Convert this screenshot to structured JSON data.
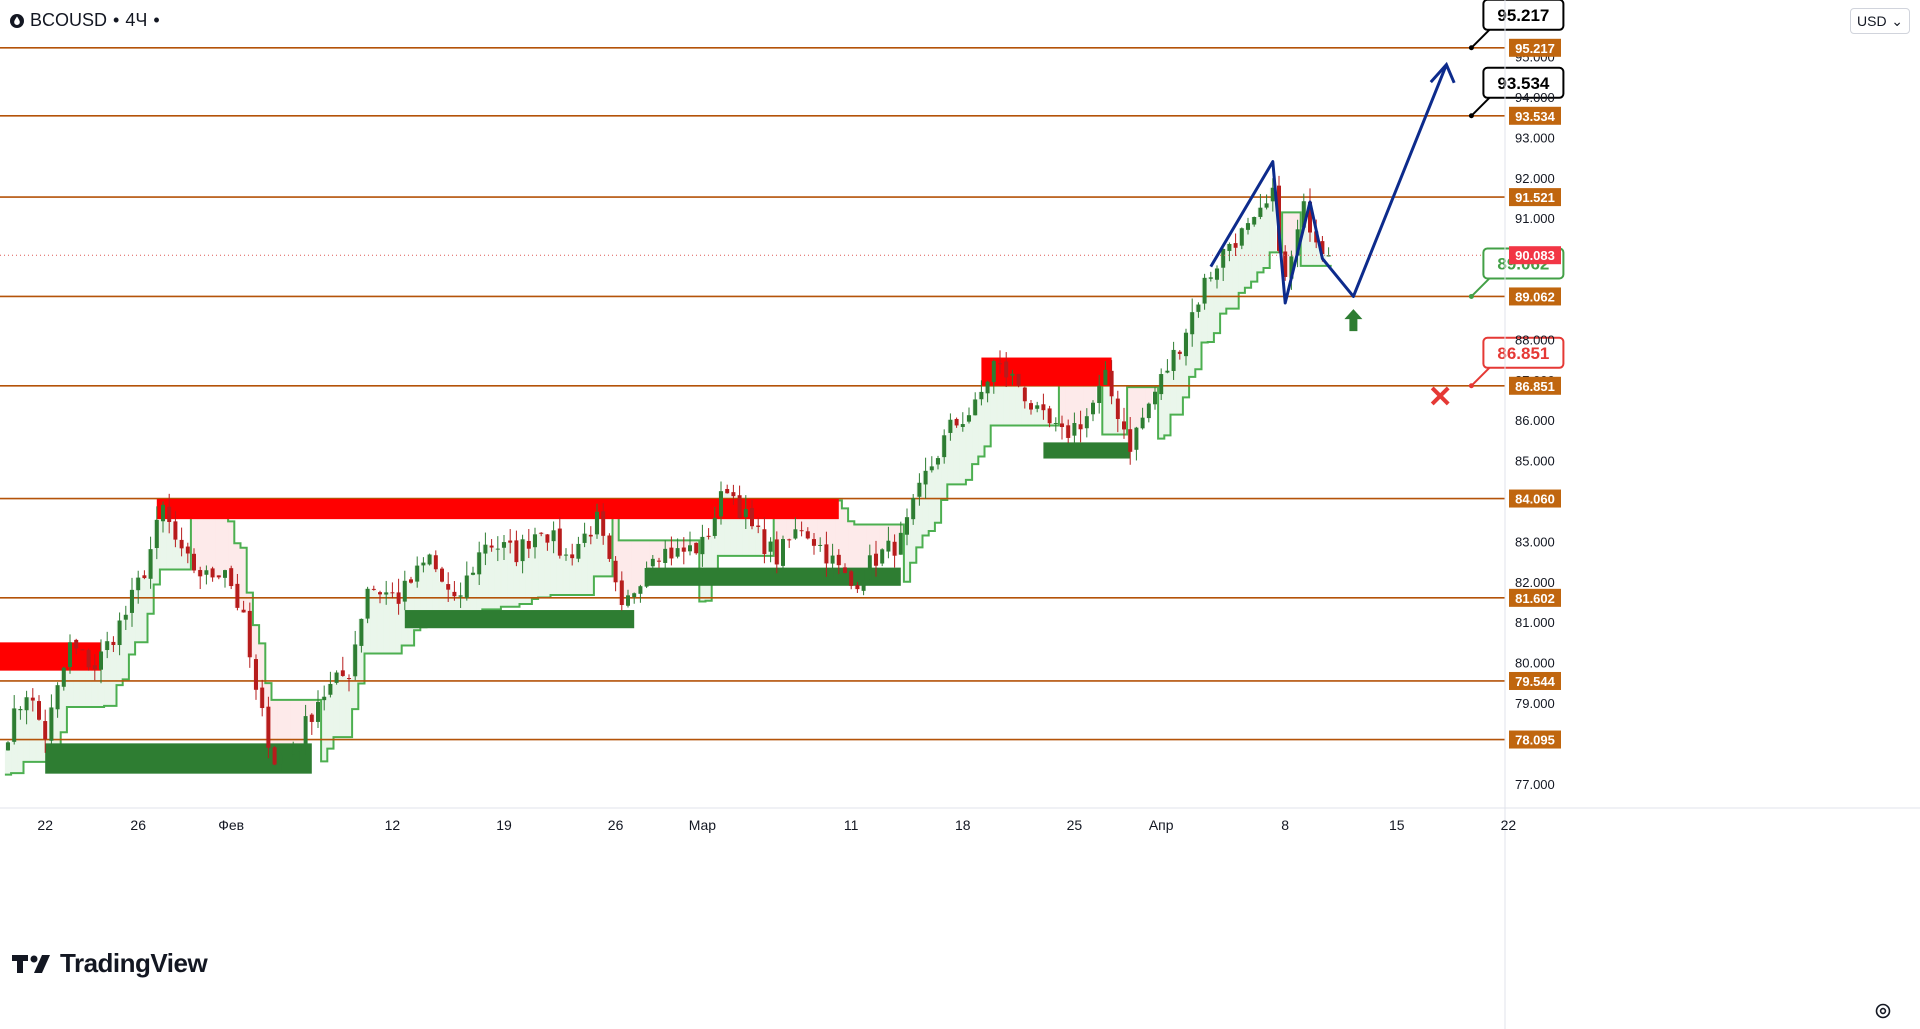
{
  "header": {
    "symbol": "BCOUSD",
    "interval": "4Ч"
  },
  "currency": "USD",
  "branding": "TradingView",
  "colors": {
    "level_line": "#b45309",
    "label_bg": "#c0660f",
    "price_line": "#dd5a56",
    "supply": "#ff0000",
    "demand": "#2e7d32",
    "trail_green": "#4caf50",
    "trail_red": "#f23645",
    "projection": "#0d2b8c",
    "bull_candle": "#2e7d32",
    "bear_candle": "#b71c1c"
  },
  "chart_data": {
    "type": "candlestick",
    "symbol": "BCOUSD",
    "timeframe": "4Ч",
    "y_range": [
      76.4,
      96.4
    ],
    "price_ticks": [
      "77.000",
      "78.000",
      "79.000",
      "80.000",
      "81.000",
      "82.000",
      "83.000",
      "84.000",
      "85.000",
      "86.000",
      "87.000",
      "88.000",
      "89.000",
      "90.000",
      "91.000",
      "92.000",
      "93.000",
      "94.000",
      "95.000"
    ],
    "x_ticks": [
      {
        "label": "22",
        "bar": 6
      },
      {
        "label": "26",
        "bar": 21
      },
      {
        "label": "Фев",
        "bar": 36
      },
      {
        "label": "12",
        "bar": 62
      },
      {
        "label": "19",
        "bar": 80
      },
      {
        "label": "26",
        "bar": 98
      },
      {
        "label": "Мар",
        "bar": 112
      },
      {
        "label": "11",
        "bar": 136
      },
      {
        "label": "18",
        "bar": 154
      },
      {
        "label": "25",
        "bar": 172
      },
      {
        "label": "Апр",
        "bar": 186
      },
      {
        "label": "8",
        "bar": 206
      },
      {
        "label": "15",
        "bar": 224
      },
      {
        "label": "22",
        "bar": 242
      }
    ],
    "levels": [
      {
        "value": 95.217,
        "label": "95.217"
      },
      {
        "value": 93.534,
        "label": "93.534"
      },
      {
        "value": 91.521,
        "label": "91.521"
      },
      {
        "value": 89.062,
        "label": "89.062"
      },
      {
        "value": 86.851,
        "label": "86.851"
      },
      {
        "value": 84.06,
        "label": "84.060"
      },
      {
        "value": 81.602,
        "label": "81.602"
      },
      {
        "value": 79.544,
        "label": "79.544"
      },
      {
        "value": 78.095,
        "label": "78.095"
      }
    ],
    "current_price": {
      "value": 90.083,
      "label": "90.083"
    },
    "target_callouts": [
      {
        "value": 95.217,
        "label": "95.217",
        "color": "#000000",
        "bar": 232
      },
      {
        "value": 93.534,
        "label": "93.534",
        "color": "#000000",
        "bar": 232
      },
      {
        "value": 89.062,
        "label": "89.062",
        "color": "#43a047",
        "bar": 232
      },
      {
        "value": 86.851,
        "label": "86.851",
        "color": "#e53935",
        "bar": 232
      }
    ],
    "supply_zones": [
      {
        "bar_start": -2,
        "bar_end": 15,
        "top": 80.5,
        "bottom": 79.8
      },
      {
        "bar_start": 24,
        "bar_end": 134,
        "top": 84.05,
        "bottom": 83.55
      },
      {
        "bar_start": 157,
        "bar_end": 178,
        "top": 87.55,
        "bottom": 86.85
      }
    ],
    "demand_zones": [
      {
        "bar_start": 6,
        "bar_end": 49,
        "top": 78.0,
        "bottom": 77.25
      },
      {
        "bar_start": 64,
        "bar_end": 101,
        "top": 81.3,
        "bottom": 80.85
      },
      {
        "bar_start": 103,
        "bar_end": 144,
        "top": 82.35,
        "bottom": 81.9
      },
      {
        "bar_start": 167,
        "bar_end": 181,
        "top": 85.45,
        "bottom": 85.05
      }
    ],
    "projection_path": [
      {
        "bar": 194,
        "price": 89.8
      },
      {
        "bar": 204,
        "price": 92.4
      },
      {
        "bar": 206,
        "price": 88.9
      },
      {
        "bar": 210,
        "price": 91.4
      },
      {
        "bar": 212,
        "price": 90.0
      },
      {
        "bar": 217,
        "price": 89.062
      },
      {
        "bar": 232,
        "price": 94.8
      }
    ],
    "signals": [
      {
        "type": "buy-arrow",
        "bar": 217,
        "price": 88.5
      },
      {
        "type": "stop-cross",
        "bar": 231,
        "price": 86.6
      }
    ],
    "anchors": [
      {
        "bar": 0,
        "price": 78.3
      },
      {
        "bar": 3,
        "price": 79.3
      },
      {
        "bar": 6,
        "price": 78.2
      },
      {
        "bar": 10,
        "price": 80.4
      },
      {
        "bar": 14,
        "price": 79.9
      },
      {
        "bar": 19,
        "price": 81.2
      },
      {
        "bar": 22,
        "price": 82.3
      },
      {
        "bar": 25,
        "price": 83.8
      },
      {
        "bar": 28,
        "price": 82.6
      },
      {
        "bar": 32,
        "price": 82.1
      },
      {
        "bar": 35,
        "price": 82.4
      },
      {
        "bar": 38,
        "price": 81.0
      },
      {
        "bar": 40,
        "price": 79.2
      },
      {
        "bar": 43,
        "price": 77.6
      },
      {
        "bar": 46,
        "price": 77.8
      },
      {
        "bar": 50,
        "price": 79.1
      },
      {
        "bar": 55,
        "price": 79.8
      },
      {
        "bar": 58,
        "price": 81.9
      },
      {
        "bar": 63,
        "price": 81.6
      },
      {
        "bar": 68,
        "price": 82.6
      },
      {
        "bar": 72,
        "price": 81.4
      },
      {
        "bar": 77,
        "price": 83.0
      },
      {
        "bar": 82,
        "price": 82.7
      },
      {
        "bar": 86,
        "price": 83.4
      },
      {
        "bar": 90,
        "price": 82.6
      },
      {
        "bar": 95,
        "price": 83.5
      },
      {
        "bar": 99,
        "price": 81.2
      },
      {
        "bar": 104,
        "price": 82.8
      },
      {
        "bar": 108,
        "price": 82.7
      },
      {
        "bar": 112,
        "price": 82.9
      },
      {
        "bar": 116,
        "price": 84.4
      },
      {
        "bar": 120,
        "price": 83.3
      },
      {
        "bar": 124,
        "price": 82.6
      },
      {
        "bar": 128,
        "price": 83.4
      },
      {
        "bar": 132,
        "price": 82.7
      },
      {
        "bar": 136,
        "price": 81.9
      },
      {
        "bar": 140,
        "price": 82.6
      },
      {
        "bar": 144,
        "price": 83.0
      },
      {
        "bar": 148,
        "price": 84.6
      },
      {
        "bar": 152,
        "price": 85.8
      },
      {
        "bar": 156,
        "price": 86.3
      },
      {
        "bar": 159,
        "price": 87.4
      },
      {
        "bar": 163,
        "price": 86.9
      },
      {
        "bar": 166,
        "price": 86.1
      },
      {
        "bar": 170,
        "price": 85.6
      },
      {
        "bar": 174,
        "price": 86.1
      },
      {
        "bar": 177,
        "price": 87.0
      },
      {
        "bar": 181,
        "price": 85.4
      },
      {
        "bar": 185,
        "price": 86.7
      },
      {
        "bar": 189,
        "price": 87.9
      },
      {
        "bar": 193,
        "price": 89.4
      },
      {
        "bar": 197,
        "price": 90.4
      },
      {
        "bar": 201,
        "price": 90.8
      },
      {
        "bar": 204,
        "price": 91.5
      },
      {
        "bar": 206,
        "price": 89.4
      },
      {
        "bar": 209,
        "price": 91.2
      },
      {
        "bar": 211,
        "price": 90.6
      },
      {
        "bar": 213,
        "price": 90.083
      }
    ]
  }
}
